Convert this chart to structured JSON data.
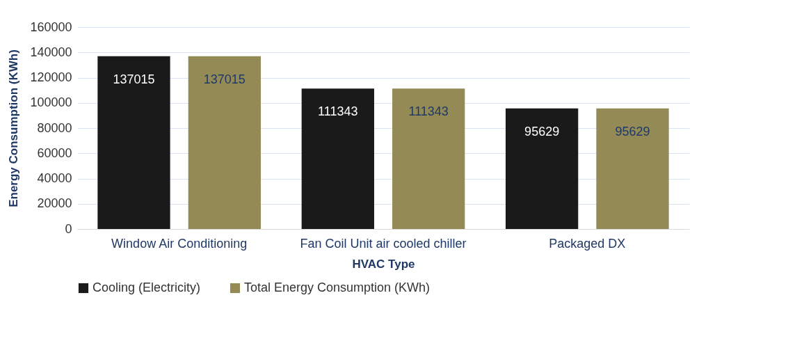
{
  "chart_data": {
    "type": "bar",
    "xlabel": "HVAC Type",
    "ylabel": "Energy Consumption (KWh)",
    "categories": [
      "Window Air Conditioning",
      "Fan Coil Unit air cooled chiller",
      "Packaged DX"
    ],
    "series": [
      {
        "name": "Cooling (Electricity)",
        "color": "#1a1a1a",
        "values": [
          137015,
          111343,
          95629
        ]
      },
      {
        "name": "Total Energy Consumption (KWh)",
        "color": "#948a55",
        "values": [
          137015,
          111343,
          95629
        ]
      }
    ],
    "ylim": [
      0,
      160000
    ],
    "yticks": [
      0,
      20000,
      40000,
      60000,
      80000,
      100000,
      120000,
      140000,
      160000
    ],
    "grid": "y",
    "legend": "bottom",
    "data_labels": true
  }
}
